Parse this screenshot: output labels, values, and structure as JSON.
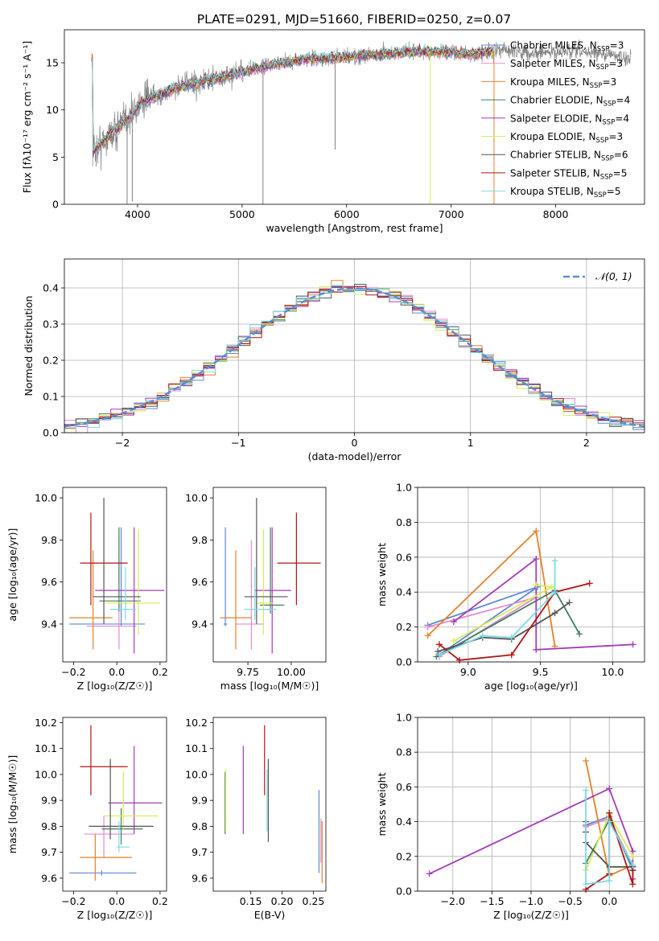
{
  "figure_title": "PLATE=0291, MJD=51660, FIBERID=0250, z=0.07",
  "colors": {
    "Chabrier MILES": "#5b8bd6",
    "Salpeter MILES": "#e58bd1",
    "Kroupa MILES": "#e5822a",
    "Chabrier ELODIE": "#3f7f5f",
    "Salpeter ELODIE": "#a13cb8",
    "Kroupa ELODIE": "#d7ec5a",
    "Chabrier STELIB": "#555555",
    "Salpeter STELIB": "#b01515",
    "Kroupa STELIB": "#7fd9e3",
    "spectrum": "#808080",
    "gaussian": "#5b8bd6",
    "grid": "#b0b0b0"
  },
  "chart_data": [
    {
      "id": "spectrum",
      "type": "line",
      "xlabel": "wavelength [Angstrom, rest frame]",
      "ylabel": "Flux [fλ10⁻¹⁷ erg cm⁻² s⁻¹ A⁻¹]",
      "xlim": [
        3300,
        8850
      ],
      "ylim": [
        0,
        18.5
      ],
      "xticks": [
        4000,
        5000,
        6000,
        7000,
        8000
      ],
      "yticks": [
        0,
        5,
        10,
        15
      ],
      "grid": false,
      "legend_position": "right",
      "legend": [
        {
          "name": "Chabrier MILES",
          "label": "Chabrier MILES, N",
          "n": "=3"
        },
        {
          "name": "Salpeter MILES",
          "label": "Salpeter MILES, N",
          "n": "=3"
        },
        {
          "name": "Kroupa MILES",
          "label": "Kroupa MILES, N",
          "n": "=3"
        },
        {
          "name": "Chabrier ELODIE",
          "label": "Chabrier ELODIE, N",
          "n": "=4"
        },
        {
          "name": "Salpeter ELODIE",
          "label": "Salpeter ELODIE, N",
          "n": "=4"
        },
        {
          "name": "Kroupa ELODIE",
          "label": "Kroupa ELODIE, N",
          "n": "=3"
        },
        {
          "name": "Chabrier STELIB",
          "label": "Chabrier STELIB, N",
          "n": "=6"
        },
        {
          "name": "Salpeter STELIB",
          "label": "Salpeter STELIB, N",
          "n": "=5"
        },
        {
          "name": "Kroupa STELIB",
          "label": "Kroupa STELIB, N",
          "n": "=5"
        }
      ],
      "legend_sub": "SSP",
      "continuum": [
        [
          3570,
          5.5
        ],
        [
          3700,
          7.0
        ],
        [
          3850,
          8.5
        ],
        [
          3950,
          9.5
        ],
        [
          4050,
          11.0
        ],
        [
          4200,
          11.5
        ],
        [
          4400,
          12.5
        ],
        [
          4700,
          13.2
        ],
        [
          5000,
          14.0
        ],
        [
          5300,
          14.8
        ],
        [
          5600,
          15.4
        ],
        [
          6000,
          15.6
        ],
        [
          6300,
          15.9
        ],
        [
          6600,
          16.2
        ],
        [
          6900,
          16.2
        ],
        [
          7200,
          15.9
        ],
        [
          7500,
          16.4
        ],
        [
          7800,
          16.0
        ],
        [
          8200,
          16.2
        ],
        [
          8500,
          15.9
        ],
        [
          8720,
          15.4
        ]
      ],
      "model_range": [
        3560,
        7400
      ],
      "deep_lines": [
        [
          3900,
          0.0
        ],
        [
          3950,
          0.3
        ],
        [
          5200,
          0.0
        ],
        [
          5890,
          5.8
        ],
        [
          6800,
          0.0
        ],
        [
          7410,
          0.0
        ]
      ]
    },
    {
      "id": "residuals",
      "type": "histogram",
      "xlabel": "(data-model)/error",
      "ylabel": "Normed distribution",
      "xlim": [
        -2.5,
        2.5
      ],
      "ylim": [
        0,
        0.48
      ],
      "xticks": [
        -2,
        -1,
        0,
        1,
        2
      ],
      "yticks": [
        0.0,
        0.1,
        0.2,
        0.3,
        0.4
      ],
      "grid": true,
      "legend_position": "top-right",
      "gaussian_label": "𝒩(0, 1)",
      "bin_width": 0.1
    },
    {
      "id": "age-vs-Z",
      "type": "errorbar",
      "xlabel": "Z [log₁₀(Z/Z☉)]",
      "ylabel": "age  [log₁₀(age/yr)]",
      "xlim": [
        -0.25,
        0.23
      ],
      "ylim": [
        9.22,
        10.05
      ],
      "xticks": [
        -0.2,
        0.0,
        0.2
      ],
      "yticks": [
        9.4,
        9.6,
        9.8,
        10.0
      ],
      "grid": false,
      "points": [
        {
          "name": "Chabrier MILES",
          "x": 0.02,
          "xerr": [
            0.24,
            0.11
          ],
          "y": 9.4,
          "yerr": [
            0.01,
            0.46
          ]
        },
        {
          "name": "Salpeter MILES",
          "x": 0.01,
          "xerr": [
            0.15,
            0.08
          ],
          "y": 9.39,
          "yerr": [
            0.11,
            0.46
          ]
        },
        {
          "name": "Kroupa MILES",
          "x": -0.11,
          "xerr": [
            0.11,
            0.09
          ],
          "y": 9.43,
          "yerr": [
            0.15,
            0.32
          ]
        },
        {
          "name": "Chabrier ELODIE",
          "x": 0.01,
          "xerr": [
            0.09,
            0.1
          ],
          "y": 9.51,
          "yerr": [
            0.05,
            0.35
          ]
        },
        {
          "name": "Salpeter ELODIE",
          "x": 0.08,
          "xerr": [
            0.18,
            0.14
          ],
          "y": 9.56,
          "yerr": [
            0.3,
            0.3
          ]
        },
        {
          "name": "Kroupa ELODIE",
          "x": 0.1,
          "xerr": [
            0.15,
            0.1
          ],
          "y": 9.5,
          "yerr": [
            0.15,
            0.35
          ]
        },
        {
          "name": "Chabrier STELIB",
          "x": -0.06,
          "xerr": [
            0.05,
            0.17
          ],
          "y": 9.53,
          "yerr": [
            0.13,
            0.47
          ]
        },
        {
          "name": "Salpeter STELIB",
          "x": -0.12,
          "xerr": [
            0.05,
            0.17
          ],
          "y": 9.69,
          "yerr": [
            0.2,
            0.24
          ]
        },
        {
          "name": "Kroupa STELIB",
          "x": 0.04,
          "xerr": [
            0.07,
            0.05
          ],
          "y": 9.47,
          "yerr": [
            0.05,
            0.2
          ]
        }
      ]
    },
    {
      "id": "age-vs-mass",
      "type": "errorbar",
      "xlabel": "mass [log₁₀(M/M☉)]",
      "ylabel": "",
      "xlim": [
        9.55,
        10.2
      ],
      "ylim": [
        9.22,
        10.05
      ],
      "xticks": [
        9.75,
        10.0
      ],
      "yticks": [
        9.4,
        9.6,
        9.8,
        10.0
      ],
      "grid": false,
      "points": [
        {
          "name": "Chabrier MILES",
          "x": 9.62,
          "xerr": [
            0.01,
            0.01
          ],
          "y": 9.4,
          "yerr": [
            0.01,
            0.46
          ]
        },
        {
          "name": "Salpeter MILES",
          "x": 9.77,
          "xerr": [
            0.09,
            0.07
          ],
          "y": 9.4,
          "yerr": [
            0.12,
            0.4
          ]
        },
        {
          "name": "Kroupa MILES",
          "x": 9.68,
          "xerr": [
            0.09,
            0.09
          ],
          "y": 9.43,
          "yerr": [
            0.15,
            0.32
          ]
        },
        {
          "name": "Chabrier ELODIE",
          "x": 9.88,
          "xerr": [
            0.06,
            0.08
          ],
          "y": 9.49,
          "yerr": [
            0.04,
            0.37
          ]
        },
        {
          "name": "Salpeter ELODIE",
          "x": 9.89,
          "xerr": [
            0.1,
            0.11
          ],
          "y": 9.56,
          "yerr": [
            0.3,
            0.3
          ]
        },
        {
          "name": "Kroupa ELODIE",
          "x": 9.84,
          "xerr": [
            0.04,
            0.06
          ],
          "y": 9.5,
          "yerr": [
            0.15,
            0.35
          ]
        },
        {
          "name": "Chabrier STELIB",
          "x": 9.8,
          "xerr": [
            0.07,
            0.18
          ],
          "y": 9.53,
          "yerr": [
            0.13,
            0.47
          ]
        },
        {
          "name": "Salpeter STELIB",
          "x": 10.03,
          "xerr": [
            0.11,
            0.14
          ],
          "y": 9.69,
          "yerr": [
            0.2,
            0.24
          ]
        },
        {
          "name": "Kroupa STELIB",
          "x": 9.79,
          "xerr": [
            0.06,
            0.12
          ],
          "y": 9.47,
          "yerr": [
            0.05,
            0.2
          ]
        }
      ]
    },
    {
      "id": "weight-vs-age",
      "type": "line",
      "xlabel": "age  [log₁₀(age/yr)]",
      "ylabel": "mass weight",
      "xlim": [
        8.65,
        10.22
      ],
      "ylim": [
        0,
        1.0
      ],
      "xticks": [
        9.0,
        9.5,
        10.0
      ],
      "yticks": [
        0.0,
        0.2,
        0.4,
        0.6,
        0.8,
        1.0
      ],
      "grid": true,
      "series": [
        {
          "name": "Chabrier MILES",
          "x": [
            8.72,
            9.48,
            8.8
          ],
          "y": [
            0.21,
            0.43,
            0.04
          ]
        },
        {
          "name": "Salpeter MILES",
          "x": [
            8.72,
            9.47,
            8.8
          ],
          "y": [
            0.2,
            0.37,
            0.03
          ]
        },
        {
          "name": "Kroupa MILES",
          "x": [
            8.72,
            9.47,
            9.6
          ],
          "y": [
            0.15,
            0.75,
            0.09
          ]
        },
        {
          "name": "Chabrier ELODIE",
          "x": [
            8.78,
            9.6,
            9.77
          ],
          "y": [
            0.03,
            0.41,
            0.16
          ]
        },
        {
          "name": "Salpeter ELODIE",
          "x": [
            8.9,
            9.47,
            9.47,
            10.14
          ],
          "y": [
            0.23,
            0.59,
            0.07,
            0.1
          ]
        },
        {
          "name": "Kroupa ELODIE",
          "x": [
            8.9,
            9.58,
            9.47
          ],
          "y": [
            0.12,
            0.43,
            0.44
          ]
        },
        {
          "name": "Chabrier STELIB",
          "x": [
            8.79,
            9.1,
            9.3,
            9.6,
            9.7
          ],
          "y": [
            0.06,
            0.14,
            0.13,
            0.28,
            0.34
          ]
        },
        {
          "name": "Salpeter STELIB",
          "x": [
            8.8,
            8.94,
            9.3,
            9.6,
            9.84
          ],
          "y": [
            0.1,
            0.01,
            0.04,
            0.4,
            0.45
          ]
        },
        {
          "name": "Kroupa STELIB",
          "x": [
            8.8,
            9.1,
            9.3,
            9.6,
            9.6
          ],
          "y": [
            0.04,
            0.15,
            0.14,
            0.4,
            0.58
          ]
        }
      ]
    },
    {
      "id": "mass-vs-Z",
      "type": "errorbar",
      "xlabel": "Z [log₁₀(Z/Z☉)]",
      "ylabel": "mass [log₁₀(M/M☉)]",
      "xlim": [
        -0.25,
        0.23
      ],
      "ylim": [
        9.55,
        10.22
      ],
      "xticks": [
        -0.2,
        0.0,
        0.2
      ],
      "yticks": [
        9.6,
        9.7,
        9.8,
        9.9,
        10.0,
        10.1,
        10.2
      ],
      "grid": false,
      "points": [
        {
          "name": "Chabrier MILES",
          "x": -0.07,
          "xerr": [
            0.15,
            0.16
          ],
          "y": 9.62,
          "yerr": [
            0.01,
            0.01
          ]
        },
        {
          "name": "Salpeter MILES",
          "x": -0.06,
          "xerr": [
            0.09,
            0.14
          ],
          "y": 9.77,
          "yerr": [
            0.09,
            0.07
          ]
        },
        {
          "name": "Kroupa MILES",
          "x": -0.1,
          "xerr": [
            0.07,
            0.17
          ],
          "y": 9.68,
          "yerr": [
            0.09,
            0.09
          ]
        },
        {
          "name": "Chabrier ELODIE",
          "x": 0.02,
          "xerr": [
            0.09,
            0.1
          ],
          "y": 9.79,
          "yerr": [
            0.06,
            0.08
          ]
        },
        {
          "name": "Salpeter ELODIE",
          "x": 0.08,
          "xerr": [
            0.12,
            0.13
          ],
          "y": 9.89,
          "yerr": [
            0.12,
            0.22
          ]
        },
        {
          "name": "Kroupa ELODIE",
          "x": 0.03,
          "xerr": [
            0.09,
            0.16
          ],
          "y": 9.84,
          "yerr": [
            0.05,
            0.17
          ]
        },
        {
          "name": "Chabrier STELIB",
          "x": -0.03,
          "xerr": [
            0.1,
            0.2
          ],
          "y": 9.8,
          "yerr": [
            0.05,
            0.26
          ]
        },
        {
          "name": "Salpeter STELIB",
          "x": -0.12,
          "xerr": [
            0.05,
            0.17
          ],
          "y": 10.03,
          "yerr": [
            0.11,
            0.16
          ]
        },
        {
          "name": "Kroupa STELIB",
          "x": 0.01,
          "xerr": [
            0.01,
            0.05
          ],
          "y": 9.72,
          "yerr": [
            0.02,
            0.1
          ]
        }
      ]
    },
    {
      "id": "mass-vs-EBV",
      "type": "errorbar",
      "xlabel": "E(B-V)",
      "ylabel": "",
      "xlim": [
        0.09,
        0.27
      ],
      "ylim": [
        9.55,
        10.22
      ],
      "xticks": [
        0.15,
        0.2,
        0.25
      ],
      "yticks": [
        9.6,
        9.7,
        9.8,
        9.9,
        10.0,
        10.1,
        10.2
      ],
      "grid": false,
      "points": [
        {
          "name": "Chabrier MILES",
          "x": 0.259,
          "xerr": [
            0,
            0
          ],
          "y": 9.78,
          "yerr": [
            0.16,
            0.16
          ]
        },
        {
          "name": "Salpeter MILES",
          "x": 0.262,
          "xerr": [
            0,
            0
          ],
          "y": 9.78,
          "yerr": [
            0.12,
            0.05
          ]
        },
        {
          "name": "Kroupa MILES",
          "x": 0.264,
          "xerr": [
            0,
            0
          ],
          "y": 9.7,
          "yerr": [
            0.12,
            0.12
          ]
        },
        {
          "name": "Chabrier ELODIE",
          "x": 0.109,
          "xerr": [
            0,
            0
          ],
          "y": 9.89,
          "yerr": [
            0.12,
            0.12
          ]
        },
        {
          "name": "Salpeter ELODIE",
          "x": 0.138,
          "xerr": [
            0,
            0
          ],
          "y": 9.94,
          "yerr": [
            0.17,
            0.17
          ]
        },
        {
          "name": "Kroupa ELODIE",
          "x": 0.11,
          "xerr": [
            0,
            0
          ],
          "y": 9.9,
          "yerr": [
            0.12,
            0.12
          ]
        },
        {
          "name": "Chabrier STELIB",
          "x": 0.178,
          "xerr": [
            0,
            0
          ],
          "y": 9.9,
          "yerr": [
            0.16,
            0.16
          ]
        },
        {
          "name": "Salpeter STELIB",
          "x": 0.172,
          "xerr": [
            0,
            0
          ],
          "y": 10.05,
          "yerr": [
            0.13,
            0.14
          ]
        },
        {
          "name": "Kroupa STELIB",
          "x": 0.176,
          "xerr": [
            0,
            0
          ],
          "y": 9.9,
          "yerr": [
            0.12,
            0.12
          ]
        }
      ]
    },
    {
      "id": "weight-vs-Z",
      "type": "line",
      "xlabel": "Z [log₁₀(Z/Z☉)]",
      "ylabel": "mass weight",
      "xlim": [
        -2.45,
        0.45
      ],
      "ylim": [
        0,
        1.0
      ],
      "xticks": [
        -2.0,
        -1.5,
        -1.0,
        -0.5,
        0.0
      ],
      "yticks": [
        0.0,
        0.2,
        0.4,
        0.6,
        0.8,
        1.0
      ],
      "grid": true,
      "series": [
        {
          "name": "Chabrier MILES",
          "x": [
            -0.3,
            0.0,
            0.3
          ],
          "y": [
            0.38,
            0.43,
            0.12
          ]
        },
        {
          "name": "Salpeter MILES",
          "x": [
            -0.3,
            0.0,
            0.3
          ],
          "y": [
            0.37,
            0.42,
            0.15
          ]
        },
        {
          "name": "Kroupa MILES",
          "x": [
            -0.3,
            0.0,
            0.3
          ],
          "y": [
            0.75,
            0.09,
            0.15
          ]
        },
        {
          "name": "Chabrier ELODIE",
          "x": [
            -0.3,
            0.0,
            0.3
          ],
          "y": [
            0.16,
            0.41,
            0.14
          ]
        },
        {
          "name": "Salpeter ELODIE",
          "x": [
            -2.3,
            0.0,
            0.3,
            0.3
          ],
          "y": [
            0.1,
            0.59,
            0.23,
            0.07
          ]
        },
        {
          "name": "Kroupa ELODIE",
          "x": [
            -0.3,
            0.0,
            0.3
          ],
          "y": [
            0.12,
            0.44,
            0.2
          ]
        },
        {
          "name": "Chabrier STELIB",
          "x": [
            -0.3,
            -0.3,
            -0.3,
            0.0,
            0.3
          ],
          "y": [
            0.4,
            0.34,
            0.28,
            0.14,
            0.14
          ]
        },
        {
          "name": "Salpeter STELIB",
          "x": [
            -0.3,
            0.0,
            0.0,
            0.3,
            0.3
          ],
          "y": [
            0.01,
            0.1,
            0.45,
            0.04,
            0.12
          ]
        },
        {
          "name": "Kroupa STELIB",
          "x": [
            -0.3,
            -0.3,
            0.0,
            0.0,
            0.3
          ],
          "y": [
            0.58,
            0.04,
            0.06,
            0.4,
            0.15
          ]
        }
      ]
    }
  ]
}
